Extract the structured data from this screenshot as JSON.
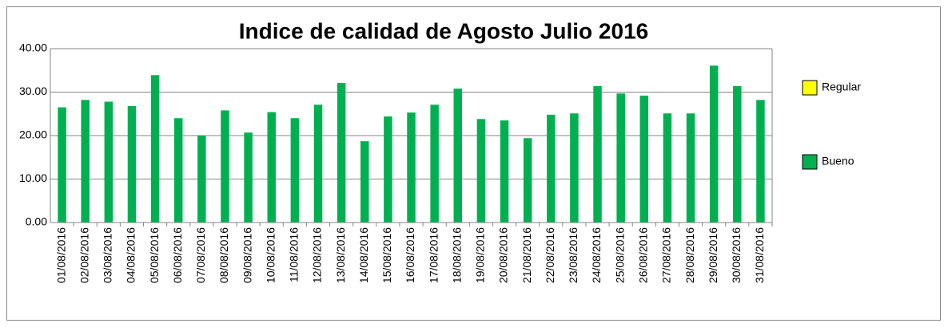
{
  "chart_data": {
    "type": "bar",
    "title": "Indice de calidad de Agosto Julio 2016",
    "categories": [
      "01/08/2016",
      "02/08/2016",
      "03/08/2016",
      "04/08/2016",
      "05/08/2016",
      "06/08/2016",
      "07/08/2016",
      "08/08/2016",
      "09/08/2016",
      "10/08/2016",
      "11/08/2016",
      "12/08/2016",
      "13/08/2016",
      "14/08/2016",
      "15/08/2016",
      "16/08/2016",
      "17/08/2016",
      "18/08/2016",
      "19/08/2016",
      "20/08/2016",
      "21/08/2016",
      "22/08/2016",
      "23/08/2016",
      "24/08/2016",
      "25/08/2016",
      "26/08/2016",
      "27/08/2016",
      "28/08/2016",
      "29/08/2016",
      "30/08/2016",
      "31/08/2016"
    ],
    "series": [
      {
        "name": "Regular",
        "color": "#ffff00",
        "values": [
          null,
          null,
          null,
          null,
          null,
          null,
          null,
          null,
          null,
          null,
          null,
          null,
          null,
          null,
          null,
          null,
          null,
          null,
          null,
          null,
          null,
          null,
          null,
          null,
          null,
          null,
          null,
          null,
          null,
          null,
          null
        ]
      },
      {
        "name": "Bueno",
        "color": "#00b050",
        "values": [
          26.5,
          28.2,
          27.8,
          26.8,
          33.9,
          24.0,
          20.0,
          25.8,
          20.7,
          25.4,
          24.0,
          27.1,
          32.1,
          18.7,
          24.4,
          25.3,
          27.1,
          30.8,
          23.8,
          23.5,
          19.4,
          24.8,
          25.1,
          31.4,
          29.7,
          29.2,
          25.1,
          25.1,
          36.1,
          31.4,
          28.2
        ]
      }
    ],
    "ylim": [
      0,
      40
    ],
    "yticks": [
      {
        "value": 0,
        "label": "0.00"
      },
      {
        "value": 10,
        "label": "10.00"
      },
      {
        "value": 20,
        "label": "20.00"
      },
      {
        "value": 30,
        "label": "30.00"
      },
      {
        "value": 40,
        "label": "40.00"
      }
    ],
    "grid": true
  }
}
